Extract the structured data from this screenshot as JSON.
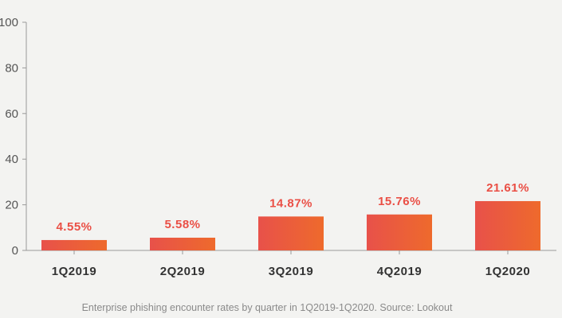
{
  "chart_data": {
    "type": "bar",
    "categories": [
      "1Q2019",
      "2Q2019",
      "3Q2019",
      "4Q2019",
      "1Q2020"
    ],
    "values": [
      4.55,
      5.58,
      14.87,
      15.76,
      21.61
    ],
    "data_labels": [
      "4.55%",
      "5.58%",
      "14.87%",
      "15.76%",
      "21.61%"
    ],
    "ylim": [
      0,
      100
    ],
    "yticks": [
      0,
      20,
      40,
      60,
      80,
      100
    ],
    "ytick_labels": [
      "0",
      "20",
      "40",
      "60",
      "80",
      "100"
    ],
    "title": "",
    "xlabel": "",
    "ylabel": "",
    "grid": false,
    "colors": {
      "bar_start": "#e8514a",
      "bar_end": "#ee6a2c",
      "label": "#ea4f45",
      "axis": "#999999"
    }
  },
  "caption": "Enterprise phishing encounter rates by quarter in 1Q2019-1Q2020. Source: Lookout"
}
